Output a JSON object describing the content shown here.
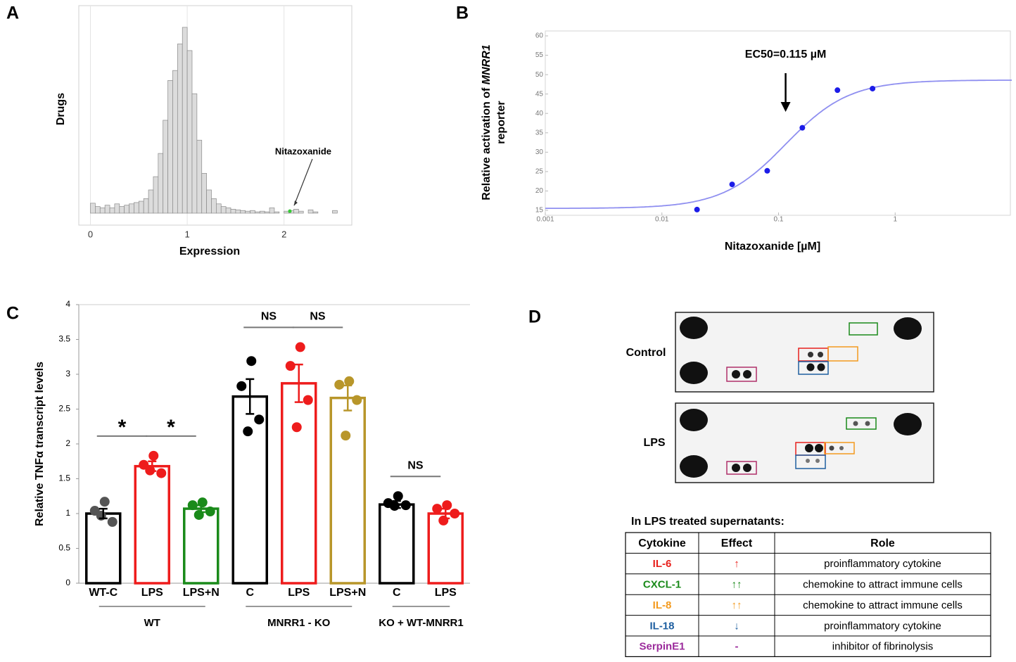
{
  "panel_labels": [
    "A",
    "B",
    "C",
    "D"
  ],
  "chart_data": [
    {
      "type": "histogram",
      "xlabel": "Expression",
      "ylabel": "Drugs",
      "bins": [
        0,
        0.05,
        0.1,
        0.15,
        0.2,
        0.25,
        0.3,
        0.35,
        0.4,
        0.45,
        0.5,
        0.55,
        0.6,
        0.65,
        0.7,
        0.75,
        0.8,
        0.85,
        0.9,
        0.95,
        1,
        1.05,
        1.1,
        1.15,
        1.2,
        1.25,
        1.3,
        1.35,
        1.4,
        1.45,
        1.5,
        1.55,
        1.6,
        1.65,
        1.7,
        1.75,
        1.8,
        1.85,
        1.9,
        1.95,
        2,
        2.05,
        2.1,
        2.15,
        2.2,
        2.25,
        2.3,
        2.35,
        2.4,
        2.45,
        2.5,
        2.55,
        2.6
      ],
      "counts": [
        15,
        10,
        8,
        12,
        8,
        14,
        10,
        12,
        14,
        16,
        18,
        22,
        35,
        55,
        90,
        140,
        200,
        215,
        255,
        280,
        245,
        180,
        110,
        60,
        35,
        22,
        14,
        10,
        8,
        6,
        5,
        4,
        3,
        4,
        2,
        3,
        2,
        8,
        2,
        0,
        3,
        4,
        6,
        3,
        0,
        5,
        2,
        0,
        0,
        0,
        4,
        0
      ],
      "xlim": [
        -0.12,
        2.7
      ],
      "xticks": [
        0,
        1,
        2
      ],
      "ylim": [
        0,
        300
      ],
      "color": "#dcdcdc",
      "edge_color": "#8a8a8a",
      "grid": true,
      "annotation": {
        "text": "Nitazoxanide",
        "x": 2.06,
        "y": 3,
        "color": "#33cc33"
      }
    },
    {
      "type": "scatter",
      "xscale": "log",
      "xlabel": "Nitazoxanide [µM]",
      "ylabel": [
        "Relative activation of ",
        "MNRR1",
        "reporter"
      ],
      "x": [
        0.02,
        0.04,
        0.08,
        0.16,
        0.32,
        0.64
      ],
      "values": [
        15.2,
        21.7,
        25.2,
        36.3,
        46,
        46.4
      ],
      "color": "#1c1ce8",
      "xlim": [
        0.001,
        10
      ],
      "xticks": [
        0.001,
        0.01,
        0.1,
        1
      ],
      "ylim": [
        15,
        60
      ],
      "yticks": [
        15,
        20,
        25,
        30,
        35,
        40,
        45,
        50,
        55,
        60
      ],
      "fit": {
        "bottom": 15.5,
        "top": 48.6,
        "ec50": 0.115,
        "hill": 1.6,
        "color": "#8f8ff0"
      },
      "annotation": "EC50=0.115 µM"
    },
    {
      "type": "bar",
      "ylabel": "Relative TNFα transcript levels",
      "categories": [
        "WT-C",
        "LPS",
        "LPS+N",
        "C",
        "LPS",
        "LPS+N",
        "C",
        "LPS"
      ],
      "values": [
        1.0,
        1.68,
        1.07,
        2.68,
        2.87,
        2.66,
        1.13,
        1.0
      ],
      "errors": [
        0.07,
        0.07,
        0.05,
        0.25,
        0.27,
        0.18,
        0.05,
        0.07
      ],
      "points": [
        [
          1.17,
          1.04,
          0.88,
          0.97
        ],
        [
          1.83,
          1.7,
          1.58,
          1.62
        ],
        [
          1.16,
          1.12,
          1.03,
          0.98
        ],
        [
          3.19,
          2.83,
          2.35,
          2.18
        ],
        [
          3.39,
          3.12,
          2.63,
          2.24
        ],
        [
          2.9,
          2.85,
          2.63,
          2.12
        ],
        [
          1.25,
          1.15,
          1.12,
          1.11
        ],
        [
          1.12,
          1.07,
          1.0,
          0.9
        ]
      ],
      "colors": [
        "#000000",
        "#ee1c1c",
        "#1a8a1a",
        "#000000",
        "#ee1c1c",
        "#b8962a",
        "#000000",
        "#ee1c1c"
      ],
      "point_colors": [
        "#555555",
        "#ee1c1c",
        "#1a8a1a",
        "#000000",
        "#ee1c1c",
        "#b8962a",
        "#000000",
        "#ee1c1c"
      ],
      "ylim": [
        0,
        4
      ],
      "yticks": [
        0,
        0.5,
        1,
        1.5,
        2,
        2.5,
        3,
        3.5,
        4
      ],
      "significance": [
        {
          "from": 0,
          "to": 1,
          "label": "*"
        },
        {
          "from": 1,
          "to": 2,
          "label": "*"
        },
        {
          "from": 3,
          "to": 4,
          "label": "NS"
        },
        {
          "from": 4,
          "to": 5,
          "label": "NS"
        },
        {
          "from": 6,
          "to": 7,
          "label": "NS"
        }
      ],
      "groups": [
        {
          "label": "WT",
          "from": 0,
          "to": 2
        },
        {
          "label": "MNRR1 - KO",
          "from": 3,
          "to": 5
        },
        {
          "label": "KO + WT-MNRR1",
          "from": 6,
          "to": 7
        }
      ]
    }
  ],
  "blot": {
    "rows": [
      "Control",
      "LPS"
    ]
  },
  "table": {
    "title": "In LPS treated supernatants:",
    "header": [
      "Cytokine",
      "Effect",
      "Role"
    ],
    "rows": [
      {
        "cytokine": "IL-6",
        "effect": "↑",
        "role": "proinflammatory cytokine",
        "color": "#e8201c"
      },
      {
        "cytokine": "CXCL-1",
        "effect": "↑↑",
        "role": "chemokine to attract immune cells",
        "color": "#1a8a1a"
      },
      {
        "cytokine": "IL-8",
        "effect": "↑↑",
        "role": "chemokine to attract immune cells",
        "color": "#f39a1e"
      },
      {
        "cytokine": "IL-18",
        "effect": "↓",
        "role": "proinflammatory cytokine",
        "color": "#1f5fa0"
      },
      {
        "cytokine": "SerpinE1",
        "effect": "-",
        "role": "inhibitor of fibrinolysis",
        "color": "#9b2a9b"
      }
    ]
  }
}
